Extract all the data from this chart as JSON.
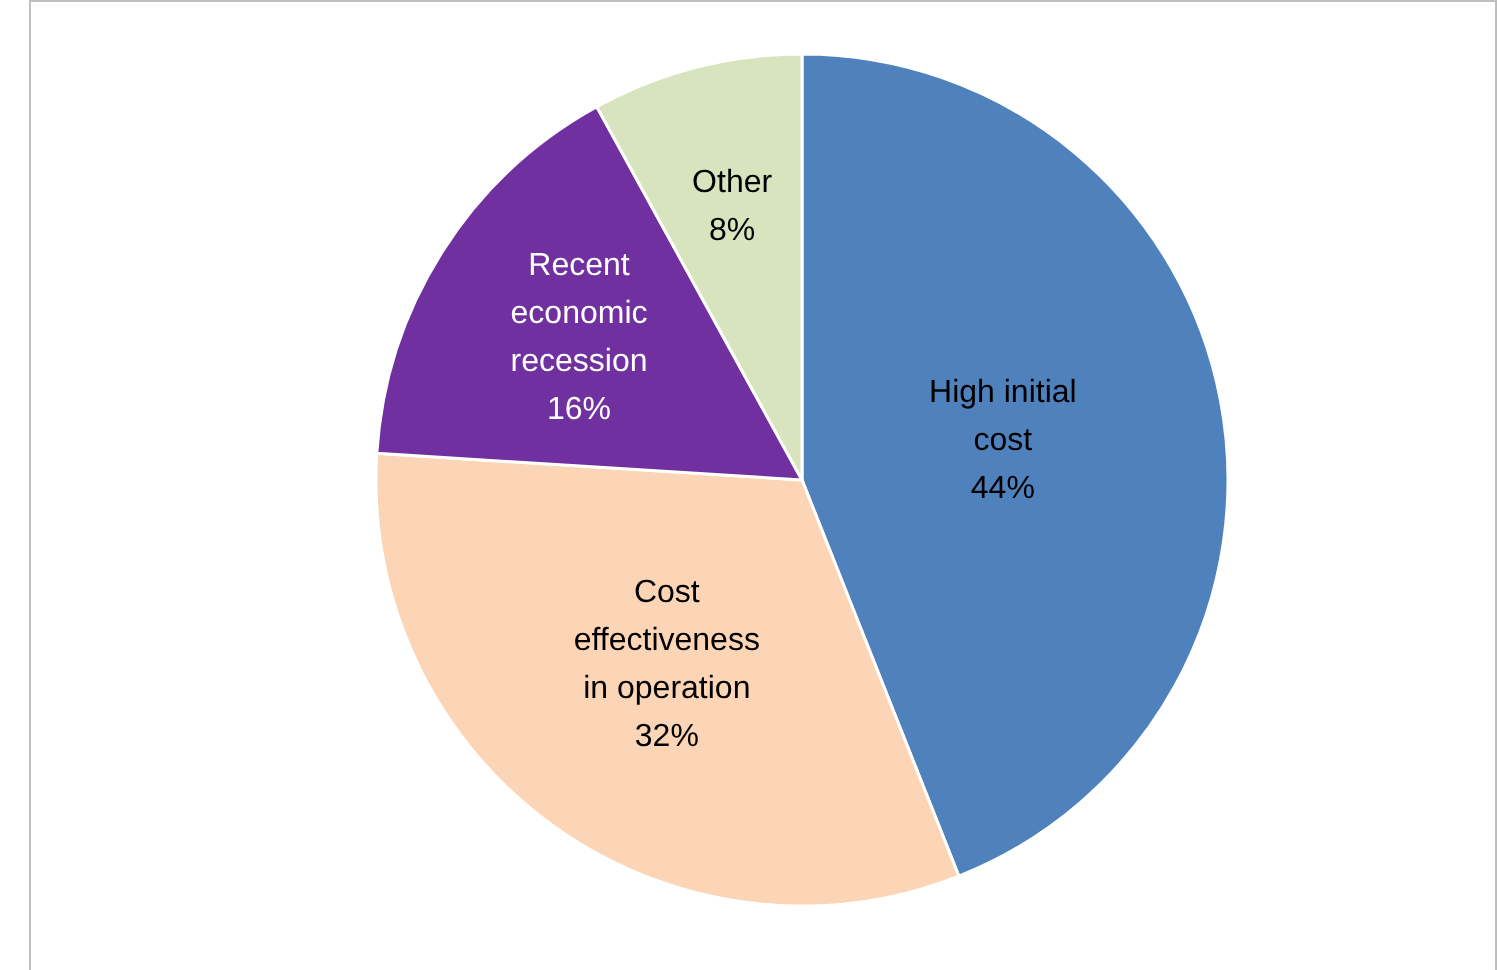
{
  "chart_data": {
    "type": "pie",
    "categories": [
      "High initial cost",
      "Cost effectiveness in operation",
      "Recent economic recession",
      "Other"
    ],
    "values": [
      44,
      32,
      16,
      8
    ],
    "colors": [
      "#4f81bd",
      "#fbd5b5",
      "#7030a0",
      "#d7e4bd"
    ],
    "value_labels": [
      "44%",
      "32%",
      "16%",
      "8%"
    ]
  }
}
